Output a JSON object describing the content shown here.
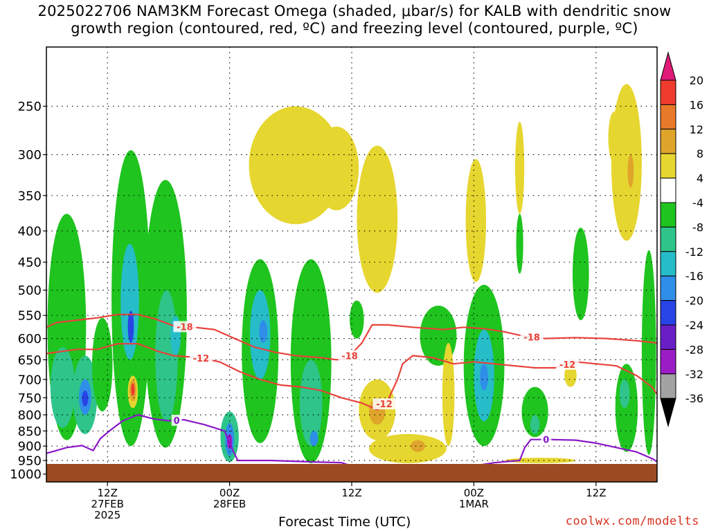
{
  "title_lines": [
    "2025022706 NAM3KM Forecast Omega (shaded, μbar/s) for KALB with dendritic snow",
    "growth region (contoured, red, ºC) and freezing level (contoured, purple, ºC)"
  ],
  "credit": "coolwx.com/modelts",
  "chart_data": {
    "type": "heatmap",
    "title": "2025022706 NAM3KM Forecast Omega (shaded, μbar/s) for KALB with dendritic snow growth region (contoured, red, ºC) and freezing level (contoured, purple, ºC)",
    "xlabel": "Forecast Time (UTC)",
    "ylabel": "",
    "x_unit": "hours since 2025-02-27 06Z",
    "xlim": [
      0,
      60
    ],
    "ylim": [
      1030,
      200
    ],
    "y_scale": "log-pressure",
    "grid": true,
    "y_ticks": [
      250,
      300,
      350,
      400,
      450,
      500,
      550,
      600,
      650,
      700,
      750,
      800,
      850,
      900,
      950,
      1000
    ],
    "x_ticks": [
      {
        "x": 6,
        "lines": [
          "12Z",
          "27FEB",
          "2025"
        ]
      },
      {
        "x": 18,
        "lines": [
          "00Z",
          "28FEB"
        ]
      },
      {
        "x": 30,
        "lines": [
          "12Z"
        ]
      },
      {
        "x": 42,
        "lines": [
          "00Z",
          "1MAR"
        ]
      },
      {
        "x": 54,
        "lines": [
          "12Z"
        ]
      }
    ],
    "colorbar": {
      "labels": [
        20,
        16,
        12,
        8,
        4,
        -4,
        -8,
        -12,
        -16,
        -20,
        -24,
        -28,
        -32,
        -36
      ],
      "bins": [
        {
          "range": ">20",
          "color": "#e01a78"
        },
        {
          "range": "16 to 20",
          "color": "#ee3b2e"
        },
        {
          "range": "12 to 16",
          "color": "#e8792a"
        },
        {
          "range": "8 to 12",
          "color": "#dfa52b"
        },
        {
          "range": "4 to 8",
          "color": "#e6d630"
        },
        {
          "range": "-4 to 4",
          "color": "#ffffff"
        },
        {
          "range": "-8 to -4",
          "color": "#1fc41f"
        },
        {
          "range": "-12 to -8",
          "color": "#2ec48a"
        },
        {
          "range": "-16 to -12",
          "color": "#26bcc8"
        },
        {
          "range": "-20 to -16",
          "color": "#2f8ee8"
        },
        {
          "range": "-24 to -20",
          "color": "#2844e6"
        },
        {
          "range": "-28 to -24",
          "color": "#6a1fc6"
        },
        {
          "range": "-32 to -28",
          "color": "#9c1cc6"
        },
        {
          "range": "-36 to -32",
          "color": "#a3a3a3"
        },
        {
          "range": "<-36",
          "color": "#000000"
        }
      ]
    },
    "cells": [
      {
        "x": 2.0,
        "p_top": 375,
        "p_bot": 880,
        "hw": 1.9,
        "value": -5
      },
      {
        "x": 1.6,
        "p_top": 620,
        "p_bot": 840,
        "hw": 1.2,
        "value": -9
      },
      {
        "x": 3.8,
        "p_top": 640,
        "p_bot": 860,
        "hw": 1.2,
        "value": -11
      },
      {
        "x": 3.8,
        "p_top": 700,
        "p_bot": 800,
        "hw": 0.6,
        "value": -18
      },
      {
        "x": 3.8,
        "p_top": 730,
        "p_bot": 775,
        "hw": 0.3,
        "value": -22
      },
      {
        "x": 5.5,
        "p_top": 555,
        "p_bot": 790,
        "hw": 1.0,
        "value": -6
      },
      {
        "x": 8.3,
        "p_top": 295,
        "p_bot": 900,
        "hw": 1.9,
        "value": -6
      },
      {
        "x": 8.2,
        "p_top": 420,
        "p_bot": 650,
        "hw": 0.9,
        "value": -12
      },
      {
        "x": 8.3,
        "p_top": 540,
        "p_bot": 610,
        "hw": 0.3,
        "value": -21
      },
      {
        "x": 8.5,
        "p_top": 690,
        "p_bot": 780,
        "hw": 0.5,
        "value": 5
      },
      {
        "x": 8.5,
        "p_top": 700,
        "p_bot": 760,
        "hw": 0.35,
        "value": 10
      },
      {
        "x": 8.5,
        "p_top": 710,
        "p_bot": 745,
        "hw": 0.18,
        "value": 17
      },
      {
        "x": 11.7,
        "p_top": 330,
        "p_bot": 905,
        "hw": 2.1,
        "value": -6
      },
      {
        "x": 11.8,
        "p_top": 500,
        "p_bot": 820,
        "hw": 1.1,
        "value": -10
      },
      {
        "x": 12.7,
        "p_top": 550,
        "p_bot": 640,
        "hw": 0.5,
        "value": -14
      },
      {
        "x": 18.0,
        "p_top": 790,
        "p_bot": 955,
        "hw": 0.9,
        "value": -8
      },
      {
        "x": 18.0,
        "p_top": 825,
        "p_bot": 935,
        "hw": 0.45,
        "value": -17
      },
      {
        "x": 18.0,
        "p_top": 860,
        "p_bot": 910,
        "hw": 0.25,
        "value": -29
      },
      {
        "x": 21.0,
        "p_top": 445,
        "p_bot": 890,
        "hw": 1.8,
        "value": -6
      },
      {
        "x": 21.0,
        "p_top": 500,
        "p_bot": 700,
        "hw": 1.0,
        "value": -12
      },
      {
        "x": 21.3,
        "p_top": 560,
        "p_bot": 610,
        "hw": 0.4,
        "value": -17
      },
      {
        "x": 26.0,
        "p_top": 445,
        "p_bot": 960,
        "hw": 2.0,
        "value": -6
      },
      {
        "x": 26.0,
        "p_top": 650,
        "p_bot": 900,
        "hw": 1.1,
        "value": -10
      },
      {
        "x": 26.3,
        "p_top": 850,
        "p_bot": 900,
        "hw": 0.4,
        "value": -17
      },
      {
        "x": 24.5,
        "p_top": 250,
        "p_bot": 390,
        "hw": 4.6,
        "value": 5
      },
      {
        "x": 28.5,
        "p_top": 270,
        "p_bot": 370,
        "hw": 2.2,
        "value": 5
      },
      {
        "x": 32.5,
        "p_top": 290,
        "p_bot": 505,
        "hw": 2.0,
        "value": 5
      },
      {
        "x": 30.5,
        "p_top": 520,
        "p_bot": 600,
        "hw": 0.7,
        "value": -6
      },
      {
        "x": 32.5,
        "p_top": 700,
        "p_bot": 880,
        "hw": 1.8,
        "value": 5
      },
      {
        "x": 32.5,
        "p_top": 750,
        "p_bot": 830,
        "hw": 0.8,
        "value": 9
      },
      {
        "x": 35.5,
        "p_top": 860,
        "p_bot": 960,
        "hw": 3.8,
        "value": 5
      },
      {
        "x": 36.5,
        "p_top": 880,
        "p_bot": 920,
        "hw": 0.7,
        "value": 9
      },
      {
        "x": 38.5,
        "p_top": 530,
        "p_bot": 665,
        "hw": 1.8,
        "value": -6
      },
      {
        "x": 42.2,
        "p_top": 305,
        "p_bot": 485,
        "hw": 1.0,
        "value": 5
      },
      {
        "x": 43.0,
        "p_top": 490,
        "p_bot": 900,
        "hw": 2.0,
        "value": -6
      },
      {
        "x": 43.0,
        "p_top": 580,
        "p_bot": 820,
        "hw": 1.0,
        "value": -12
      },
      {
        "x": 43.0,
        "p_top": 660,
        "p_bot": 730,
        "hw": 0.4,
        "value": -17
      },
      {
        "x": 39.5,
        "p_top": 610,
        "p_bot": 900,
        "hw": 0.6,
        "value": 5
      },
      {
        "x": 46.5,
        "p_top": 265,
        "p_bot": 375,
        "hw": 0.45,
        "value": 5
      },
      {
        "x": 46.5,
        "p_top": 375,
        "p_bot": 470,
        "hw": 0.35,
        "value": -6
      },
      {
        "x": 48.0,
        "p_top": 720,
        "p_bot": 870,
        "hw": 1.3,
        "value": -6
      },
      {
        "x": 48.0,
        "p_top": 800,
        "p_bot": 860,
        "hw": 0.45,
        "value": -10
      },
      {
        "x": 48.5,
        "p_top": 940,
        "p_bot": 960,
        "hw": 3.5,
        "value": 5
      },
      {
        "x": 52.5,
        "p_top": 395,
        "p_bot": 560,
        "hw": 0.8,
        "value": -6
      },
      {
        "x": 51.5,
        "p_top": 660,
        "p_bot": 720,
        "hw": 0.6,
        "value": 5
      },
      {
        "x": 55.8,
        "p_top": 255,
        "p_bot": 310,
        "hw": 0.6,
        "value": 5
      },
      {
        "x": 57.0,
        "p_top": 230,
        "p_bot": 415,
        "hw": 1.5,
        "value": 5
      },
      {
        "x": 57.4,
        "p_top": 300,
        "p_bot": 340,
        "hw": 0.3,
        "value": 9
      },
      {
        "x": 57.0,
        "p_top": 660,
        "p_bot": 920,
        "hw": 1.1,
        "value": -6
      },
      {
        "x": 56.8,
        "p_top": 700,
        "p_bot": 780,
        "hw": 0.5,
        "value": -10
      },
      {
        "x": 59.2,
        "p_top": 430,
        "p_bot": 930,
        "hw": 0.7,
        "value": -6
      }
    ],
    "series": [
      {
        "name": "-18",
        "color": "#e8413a",
        "label_x": [
          13.6,
          29.8,
          47.7
        ],
        "points": [
          [
            0,
            575
          ],
          [
            1,
            565
          ],
          [
            3,
            560
          ],
          [
            5,
            555
          ],
          [
            7,
            548
          ],
          [
            9,
            548
          ],
          [
            10.8,
            558
          ],
          [
            12.5,
            572
          ],
          [
            14.5,
            575
          ],
          [
            16.5,
            580
          ],
          [
            18.5,
            600
          ],
          [
            20.5,
            620
          ],
          [
            22.5,
            632
          ],
          [
            24.5,
            640
          ],
          [
            27,
            645
          ],
          [
            28.5,
            650
          ],
          [
            29.5,
            648
          ],
          [
            31,
            610
          ],
          [
            32,
            570
          ],
          [
            33.5,
            570
          ],
          [
            36,
            575
          ],
          [
            39,
            580
          ],
          [
            41,
            575
          ],
          [
            43,
            578
          ],
          [
            45,
            585
          ],
          [
            47,
            595
          ],
          [
            49,
            600
          ],
          [
            52,
            598
          ],
          [
            55,
            600
          ],
          [
            58,
            605
          ],
          [
            60,
            610
          ]
        ]
      },
      {
        "name": "-12",
        "color": "#e8413a",
        "label_x": [
          15.2,
          33.2,
          51.2
        ],
        "points": [
          [
            0,
            635
          ],
          [
            1.5,
            630
          ],
          [
            3,
            625
          ],
          [
            5,
            625
          ],
          [
            7,
            612
          ],
          [
            9,
            612
          ],
          [
            11,
            630
          ],
          [
            12.5,
            640
          ],
          [
            15,
            645
          ],
          [
            17,
            655
          ],
          [
            19,
            680
          ],
          [
            21,
            700
          ],
          [
            23,
            715
          ],
          [
            25,
            720
          ],
          [
            27,
            730
          ],
          [
            29,
            750
          ],
          [
            31,
            765
          ],
          [
            32.5,
            785
          ],
          [
            33.5,
            760
          ],
          [
            34.5,
            700
          ],
          [
            35,
            660
          ],
          [
            36,
            640
          ],
          [
            38,
            645
          ],
          [
            40,
            660
          ],
          [
            42,
            655
          ],
          [
            44,
            660
          ],
          [
            46,
            665
          ],
          [
            48,
            670
          ],
          [
            50,
            670
          ],
          [
            52,
            655
          ],
          [
            54,
            660
          ],
          [
            56,
            665
          ],
          [
            58,
            690
          ],
          [
            59.5,
            720
          ],
          [
            60,
            740
          ]
        ]
      },
      {
        "name": "0",
        "color": "#8a16c8",
        "label_x": [
          12.8,
          49.1
        ],
        "points": [
          [
            0,
            925
          ],
          [
            1,
            915
          ],
          [
            2,
            905
          ],
          [
            3.5,
            898
          ],
          [
            4.6,
            915
          ],
          [
            5.3,
            875
          ],
          [
            6.2,
            850
          ],
          [
            7.5,
            818
          ],
          [
            9,
            800
          ],
          [
            10.5,
            812
          ],
          [
            12,
            818
          ],
          [
            13.5,
            815
          ],
          [
            15.5,
            830
          ],
          [
            17.5,
            850
          ],
          [
            18.2,
            905
          ],
          [
            18.8,
            950
          ],
          [
            22,
            950
          ],
          [
            26,
            955
          ],
          [
            29,
            958
          ],
          [
            30,
            970
          ],
          [
            36,
            972
          ],
          [
            42,
            970
          ],
          [
            44,
            958
          ],
          [
            46.5,
            950
          ],
          [
            47,
            905
          ],
          [
            47.6,
            878
          ],
          [
            49.5,
            878
          ],
          [
            52,
            880
          ],
          [
            54,
            890
          ],
          [
            56,
            905
          ],
          [
            58,
            920
          ],
          [
            59.6,
            945
          ],
          [
            60,
            955
          ]
        ]
      }
    ]
  }
}
